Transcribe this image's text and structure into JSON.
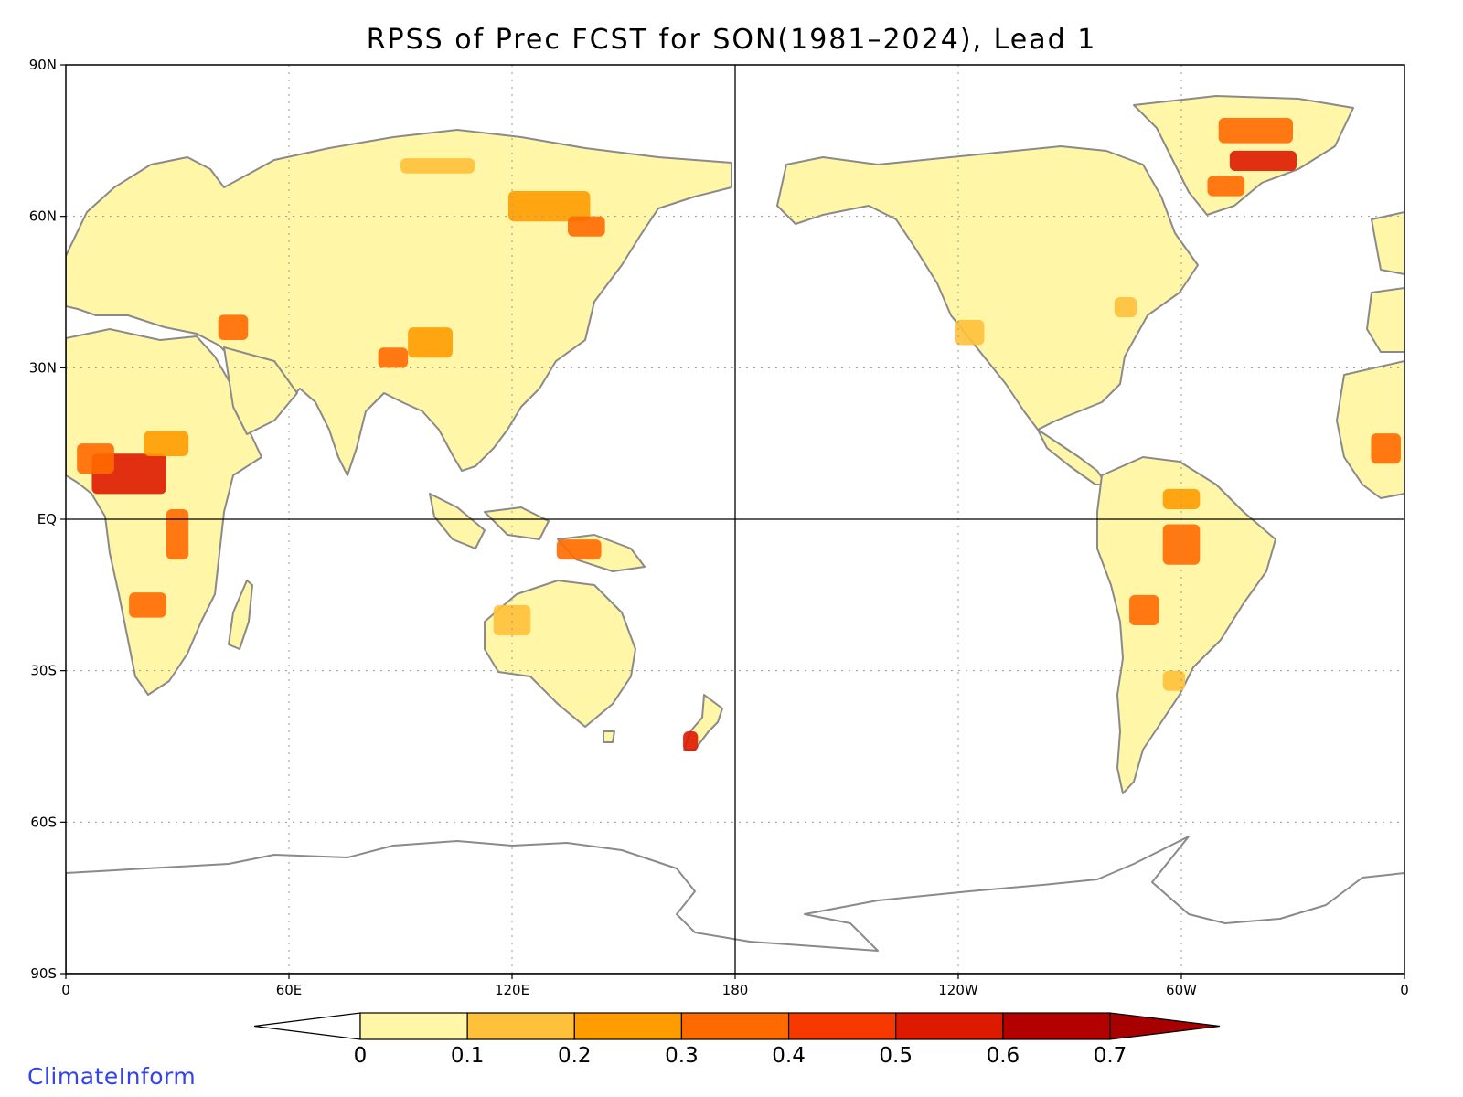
{
  "title": "RPSS of Prec FCST for SON(1981–2024), Lead 1",
  "branding": "ClimateInform",
  "map": {
    "lon_range": [
      0,
      360
    ],
    "lat_range": [
      -90,
      90
    ],
    "lat_ticks": [
      {
        "value": 90,
        "label": "90N"
      },
      {
        "value": 60,
        "label": "60N"
      },
      {
        "value": 30,
        "label": "30N"
      },
      {
        "value": 0,
        "label": "EQ"
      },
      {
        "value": -30,
        "label": "30S"
      },
      {
        "value": -60,
        "label": "60S"
      },
      {
        "value": -90,
        "label": "90S"
      }
    ],
    "lon_ticks": [
      {
        "value": 0,
        "label": "0"
      },
      {
        "value": 60,
        "label": "60E"
      },
      {
        "value": 120,
        "label": "120E"
      },
      {
        "value": 180,
        "label": "180"
      },
      {
        "value": 240,
        "label": "120W"
      },
      {
        "value": 300,
        "label": "60W"
      },
      {
        "value": 360,
        "label": "0"
      }
    ],
    "grid": "dotted",
    "reference_lines": [
      "equator",
      "dateline"
    ],
    "land_color": "#fff6a8",
    "coast_color": "#8a8a8a"
  },
  "colorbar": {
    "placement": "bottom",
    "bins": [
      {
        "from": 0,
        "to": 0.1,
        "color": "#fff6a8"
      },
      {
        "from": 0.1,
        "to": 0.2,
        "color": "#ffc13b"
      },
      {
        "from": 0.2,
        "to": 0.3,
        "color": "#ff9c00"
      },
      {
        "from": 0.3,
        "to": 0.4,
        "color": "#ff6a00"
      },
      {
        "from": 0.4,
        "to": 0.5,
        "color": "#f73800"
      },
      {
        "from": 0.5,
        "to": 0.6,
        "color": "#dd1a00"
      },
      {
        "from": 0.6,
        "to": 0.7,
        "color": "#b30000"
      }
    ],
    "below_color": "#ffffff",
    "above_color": "#a60000",
    "labels": [
      "0",
      "0.1",
      "0.2",
      "0.3",
      "0.4",
      "0.5",
      "0.6",
      "0.7"
    ]
  },
  "skill_patches": [
    {
      "lon": 17,
      "lat": 9,
      "w": 20,
      "h": 8,
      "color": "#dd1a00"
    },
    {
      "lon": 8,
      "lat": 12,
      "w": 10,
      "h": 6,
      "color": "#ff6a00"
    },
    {
      "lon": 27,
      "lat": 15,
      "w": 12,
      "h": 5,
      "color": "#ff9c00"
    },
    {
      "lon": 22,
      "lat": -17,
      "w": 10,
      "h": 5,
      "color": "#ff6a00"
    },
    {
      "lon": 30,
      "lat": -3,
      "w": 6,
      "h": 10,
      "color": "#ff6a00"
    },
    {
      "lon": 45,
      "lat": 38,
      "w": 8,
      "h": 5,
      "color": "#ff6a00"
    },
    {
      "lon": 98,
      "lat": 35,
      "w": 12,
      "h": 6,
      "color": "#ff9c00"
    },
    {
      "lon": 88,
      "lat": 32,
      "w": 8,
      "h": 4,
      "color": "#ff6a00"
    },
    {
      "lon": 130,
      "lat": 62,
      "w": 22,
      "h": 6,
      "color": "#ff9c00"
    },
    {
      "lon": 140,
      "lat": 58,
      "w": 10,
      "h": 4,
      "color": "#ff6a00"
    },
    {
      "lon": 100,
      "lat": 70,
      "w": 20,
      "h": 3,
      "color": "#ffc13b"
    },
    {
      "lon": 138,
      "lat": -6,
      "w": 12,
      "h": 4,
      "color": "#ff6a00"
    },
    {
      "lon": 120,
      "lat": -20,
      "w": 10,
      "h": 6,
      "color": "#ffc13b"
    },
    {
      "lon": 168,
      "lat": -44,
      "w": 4,
      "h": 4,
      "color": "#dd1a00"
    },
    {
      "lon": 320,
      "lat": 77,
      "w": 20,
      "h": 5,
      "color": "#ff6a00"
    },
    {
      "lon": 322,
      "lat": 71,
      "w": 18,
      "h": 4,
      "color": "#dd1a00"
    },
    {
      "lon": 312,
      "lat": 66,
      "w": 10,
      "h": 4,
      "color": "#ff6a00"
    },
    {
      "lon": 300,
      "lat": -5,
      "w": 10,
      "h": 8,
      "color": "#ff6a00"
    },
    {
      "lon": 290,
      "lat": -18,
      "w": 8,
      "h": 6,
      "color": "#ff6a00"
    },
    {
      "lon": 300,
      "lat": 4,
      "w": 10,
      "h": 4,
      "color": "#ff9c00"
    },
    {
      "lon": 355,
      "lat": 14,
      "w": 8,
      "h": 6,
      "color": "#ff6a00"
    },
    {
      "lon": 243,
      "lat": 37,
      "w": 8,
      "h": 5,
      "color": "#ffc13b"
    },
    {
      "lon": 285,
      "lat": 42,
      "w": 6,
      "h": 4,
      "color": "#ffc13b"
    },
    {
      "lon": 298,
      "lat": -32,
      "w": 6,
      "h": 4,
      "color": "#ffc13b"
    }
  ]
}
